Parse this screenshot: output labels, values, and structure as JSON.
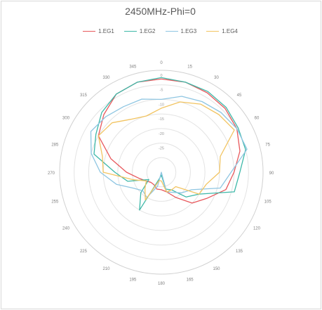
{
  "chart_data": {
    "type": "radar",
    "title": "2450MHz-Phi=0",
    "angles": [
      "0",
      "15",
      "30",
      "45",
      "60",
      "75",
      "90",
      "105",
      "120",
      "135",
      "150",
      "165",
      "180",
      "195",
      "210",
      "225",
      "240",
      "255",
      "270",
      "285",
      "300",
      "315",
      "330",
      "345"
    ],
    "radial_ticks": [
      "0",
      "-5",
      "-10",
      "-15",
      "-20",
      "-25"
    ],
    "rmin": -35,
    "rmax": 0,
    "series": [
      {
        "name": "1.EG1",
        "color": "#e8585c",
        "values": [
          -3,
          -3,
          -3.5,
          -4,
          -5,
          -7,
          -10,
          -12,
          -17,
          -20,
          -25,
          -28,
          -29,
          -29,
          -30,
          -30,
          -29,
          -27,
          -23,
          -17,
          -10,
          -7,
          -4,
          -3
        ]
      },
      {
        "name": "1.EG2",
        "color": "#3db8a8",
        "values": [
          -2.5,
          -3,
          -3,
          -3.5,
          -4.5,
          -5,
          -8,
          -9,
          -20,
          -23,
          -28,
          -29,
          -34,
          -33,
          -20,
          -25,
          -30,
          -23,
          -19,
          -11,
          -9,
          -6,
          -4,
          -3
        ]
      },
      {
        "name": "1.EG3",
        "color": "#8fc6e2",
        "values": [
          -10,
          -8,
          -7,
          -6,
          -5,
          -4.5,
          -11,
          -14,
          -23,
          -25,
          -27,
          -28,
          -35,
          -30,
          -25,
          -26,
          -24,
          -19,
          -14,
          -10,
          -7,
          -8,
          -9,
          -9
        ]
      },
      {
        "name": "1.EG4",
        "color": "#f2c461",
        "values": [
          -13,
          -10,
          -8,
          -7,
          -6,
          -14,
          -15,
          -19,
          -20,
          -28,
          -28,
          -28,
          -32,
          -32,
          -24,
          -27,
          -29,
          -25,
          -15,
          -14,
          -10,
          -11,
          -14,
          -15
        ]
      }
    ],
    "legend_position": "top",
    "grid": true
  }
}
